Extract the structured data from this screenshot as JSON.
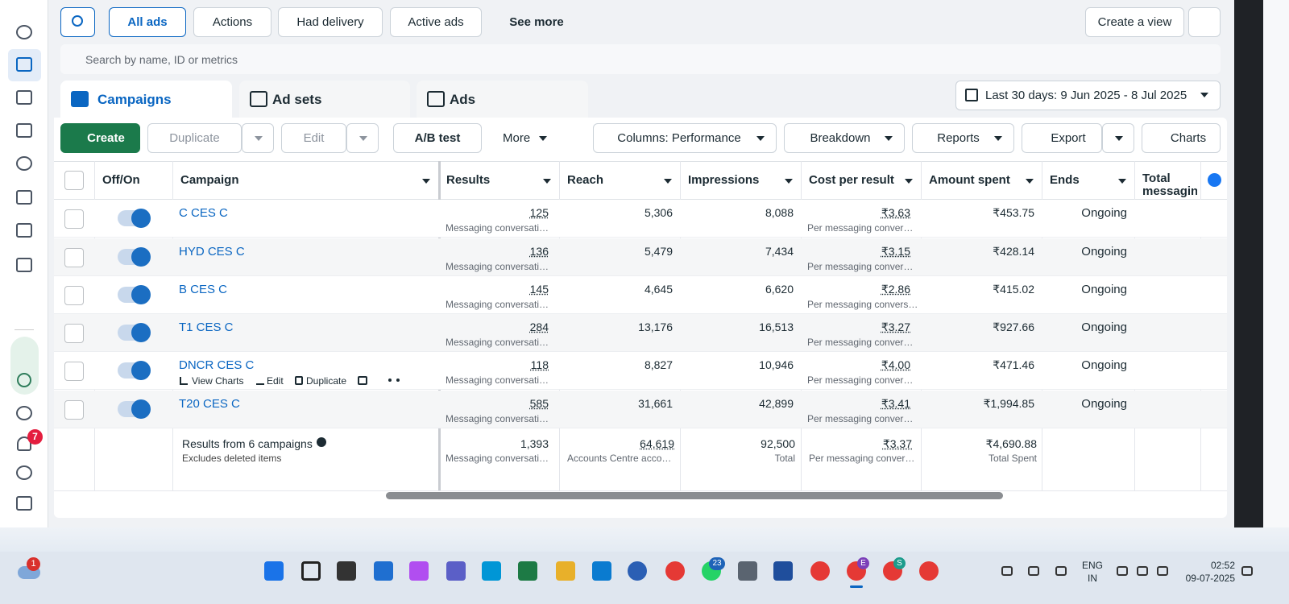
{
  "toolbar": {
    "filters": [
      "All ads",
      "Actions",
      "Had delivery",
      "Active ads",
      "See more"
    ],
    "create_view": "Create a view",
    "search_placeholder": "Search by name, ID or metrics"
  },
  "tabs": [
    "Campaigns",
    "Ad sets",
    "Ads"
  ],
  "date_range": "Last 30 days: 9 Jun 2025 - 8 Jul 2025",
  "actions": {
    "create": "Create",
    "duplicate": "Duplicate",
    "edit": "Edit",
    "ab_test": "A/B test",
    "more": "More",
    "columns": "Columns: Performance",
    "breakdown": "Breakdown",
    "reports": "Reports",
    "export": "Export",
    "charts": "Charts"
  },
  "table": {
    "columns": [
      "Off/On",
      "Campaign",
      "Results",
      "Reach",
      "Impressions",
      "Cost per result",
      "Amount spent",
      "Ends",
      "Total messaging contacts"
    ],
    "rows": [
      {
        "campaign": "C CES C",
        "results": "125",
        "results_note": "Messaging conversati…",
        "reach": "5,306",
        "impressions": "8,088",
        "cost_per_result": "₹3.63",
        "cost_note": "Per messaging conver…",
        "amount_spent": "₹453.75",
        "ends": "Ongoing"
      },
      {
        "campaign": "HYD CES C",
        "results": "136",
        "results_note": "Messaging conversati…",
        "reach": "5,479",
        "impressions": "7,434",
        "cost_per_result": "₹3.15",
        "cost_note": "Per messaging conver…",
        "amount_spent": "₹428.14",
        "ends": "Ongoing"
      },
      {
        "campaign": "B CES C",
        "results": "145",
        "results_note": "Messaging conversati…",
        "reach": "4,645",
        "impressions": "6,620",
        "cost_per_result": "₹2.86",
        "cost_note": "Per messaging convers…",
        "amount_spent": "₹415.02",
        "ends": "Ongoing"
      },
      {
        "campaign": "T1 CES C",
        "results": "284",
        "results_note": "Messaging conversati…",
        "reach": "13,176",
        "impressions": "16,513",
        "cost_per_result": "₹3.27",
        "cost_note": "Per messaging conver…",
        "amount_spent": "₹927.66",
        "ends": "Ongoing"
      },
      {
        "campaign": "DNCR CES C",
        "results": "118",
        "results_note": "Messaging conversati…",
        "reach": "8,827",
        "impressions": "10,946",
        "cost_per_result": "₹4.00",
        "cost_note": "Per messaging conver…",
        "amount_spent": "₹471.46",
        "ends": "Ongoing"
      },
      {
        "campaign": "T20 CES C",
        "results": "585",
        "results_note": "Messaging conversati…",
        "reach": "31,661",
        "impressions": "42,899",
        "cost_per_result": "₹3.41",
        "cost_note": "Per messaging conver…",
        "amount_spent": "₹1,994.85",
        "ends": "Ongoing"
      }
    ],
    "row_actions": [
      "View Charts",
      "Edit",
      "Duplicate"
    ],
    "summary": {
      "label": "Results from 6 campaigns",
      "note": "Excludes deleted items",
      "results": "1,393",
      "results_note": "Messaging conversati…",
      "reach": "64,619",
      "reach_note": "Accounts Centre acco…",
      "impressions": "92,500",
      "impressions_note": "Total",
      "cost_per_result": "₹3.37",
      "cost_note": "Per messaging conver…",
      "amount_spent": "₹4,690.88",
      "amount_note": "Total Spent"
    }
  },
  "sidebar": {
    "notifications": "7"
  },
  "taskbar": {
    "weather_badge": "1",
    "whatsapp_badge": "23",
    "profile_e": "E",
    "profile_s": "S",
    "language": "ENG",
    "region": "IN",
    "time": "02:52",
    "date": "09-07-2025"
  }
}
